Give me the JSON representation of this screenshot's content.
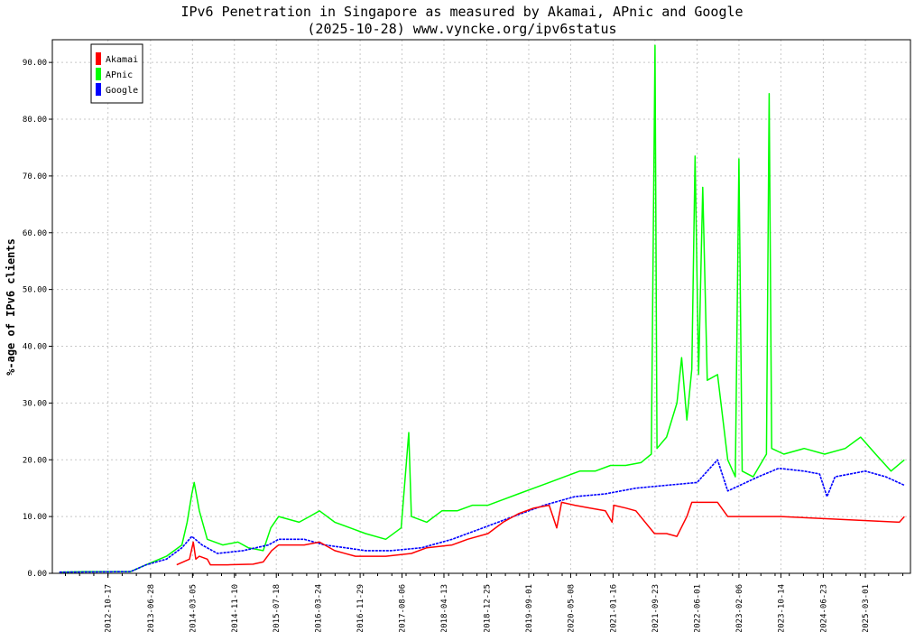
{
  "chart_data": {
    "type": "line",
    "title": "IPv6 Penetration in Singapore as measured by Akamai, APnic and Google",
    "subtitle": "(2025-10-28) www.vyncke.org/ipv6status",
    "ylabel": "%-age of IPv6 clients",
    "xlabel": "",
    "ylim": [
      0,
      94
    ],
    "xlim": [
      "2011-11-20",
      "2025-11-25"
    ],
    "grid": true,
    "legend_position": "top-left",
    "y_ticks": [
      "0.00",
      "10.00",
      "20.00",
      "30.00",
      "40.00",
      "50.00",
      "60.00",
      "70.00",
      "80.00",
      "90.00"
    ],
    "x_ticks": [
      "2012-10-17",
      "2013-06-28",
      "2014-03-05",
      "2014-11-10",
      "2015-07-18",
      "2016-03-24",
      "2016-11-29",
      "2017-08-06",
      "2018-04-13",
      "2018-12-25",
      "2019-09-01",
      "2020-05-08",
      "2021-01-16",
      "2021-09-23",
      "2022-06-01",
      "2023-02-06",
      "2023-10-14",
      "2024-06-23",
      "2025-03-01"
    ],
    "series": [
      {
        "name": "Akamai",
        "color": "#ff0000",
        "points": [
          [
            "2013-12-01",
            1.5
          ],
          [
            "2014-02-15",
            2.5
          ],
          [
            "2014-03-10",
            5.5
          ],
          [
            "2014-03-25",
            2.5
          ],
          [
            "2014-04-15",
            3.0
          ],
          [
            "2014-06-01",
            2.5
          ],
          [
            "2014-06-20",
            1.5
          ],
          [
            "2014-10-01",
            1.5
          ],
          [
            "2015-03-01",
            1.6
          ],
          [
            "2015-05-01",
            2.0
          ],
          [
            "2015-06-20",
            4.0
          ],
          [
            "2015-08-01",
            5.0
          ],
          [
            "2016-01-01",
            5.0
          ],
          [
            "2016-04-01",
            5.5
          ],
          [
            "2016-07-01",
            4.0
          ],
          [
            "2016-11-01",
            3.0
          ],
          [
            "2017-05-01",
            3.0
          ],
          [
            "2017-10-01",
            3.5
          ],
          [
            "2018-01-01",
            4.5
          ],
          [
            "2018-06-01",
            5.0
          ],
          [
            "2018-09-01",
            6.0
          ],
          [
            "2019-01-01",
            7.0
          ],
          [
            "2019-04-01",
            9.0
          ],
          [
            "2019-07-01",
            10.5
          ],
          [
            "2019-10-01",
            11.5
          ],
          [
            "2020-01-01",
            12.0
          ],
          [
            "2020-02-15",
            8.0
          ],
          [
            "2020-03-15",
            12.5
          ],
          [
            "2020-06-01",
            12.0
          ],
          [
            "2020-09-01",
            11.5
          ],
          [
            "2020-12-01",
            11.0
          ],
          [
            "2021-01-10",
            9.0
          ],
          [
            "2021-01-20",
            12.0
          ],
          [
            "2021-04-01",
            11.5
          ],
          [
            "2021-06-01",
            11.0
          ],
          [
            "2021-09-20",
            7.0
          ],
          [
            "2021-12-01",
            7.0
          ],
          [
            "2022-02-01",
            6.5
          ],
          [
            "2022-04-01",
            10.0
          ],
          [
            "2022-05-01",
            12.5
          ],
          [
            "2022-08-01",
            12.5
          ],
          [
            "2022-10-01",
            12.5
          ],
          [
            "2022-12-01",
            10.0
          ],
          [
            "2023-03-01",
            10.0
          ],
          [
            "2023-08-01",
            10.0
          ],
          [
            "2023-10-14",
            10.0
          ],
          [
            "2025-09-20",
            9.0
          ],
          [
            "2025-10-20",
            10.0
          ]
        ]
      },
      {
        "name": "APnic",
        "color": "#00ff00",
        "points": [
          [
            "2012-01-01",
            0.2
          ],
          [
            "2012-06-01",
            0.3
          ],
          [
            "2013-03-01",
            0.3
          ],
          [
            "2013-06-01",
            1.5
          ],
          [
            "2013-10-01",
            3.0
          ],
          [
            "2014-01-01",
            5.0
          ],
          [
            "2014-02-01",
            9.0
          ],
          [
            "2014-03-01",
            14.0
          ],
          [
            "2014-03-15",
            16.0
          ],
          [
            "2014-04-15",
            11.0
          ],
          [
            "2014-06-01",
            6.0
          ],
          [
            "2014-09-01",
            5.0
          ],
          [
            "2014-12-01",
            5.5
          ],
          [
            "2015-02-01",
            4.5
          ],
          [
            "2015-05-01",
            4.0
          ],
          [
            "2015-06-15",
            8.0
          ],
          [
            "2015-08-01",
            10.0
          ],
          [
            "2015-12-01",
            9.0
          ],
          [
            "2016-02-01",
            10.0
          ],
          [
            "2016-04-01",
            11.0
          ],
          [
            "2016-07-01",
            9.0
          ],
          [
            "2016-10-01",
            8.0
          ],
          [
            "2017-01-01",
            7.0
          ],
          [
            "2017-05-01",
            6.0
          ],
          [
            "2017-08-01",
            8.0
          ],
          [
            "2017-09-15",
            24.8
          ],
          [
            "2017-10-01",
            10.0
          ],
          [
            "2018-01-01",
            9.0
          ],
          [
            "2018-04-01",
            11.0
          ],
          [
            "2018-07-01",
            11.0
          ],
          [
            "2018-10-01",
            12.0
          ],
          [
            "2019-01-01",
            12.0
          ],
          [
            "2019-04-01",
            13.0
          ],
          [
            "2019-07-01",
            14.0
          ],
          [
            "2019-10-01",
            15.0
          ],
          [
            "2020-01-01",
            16.0
          ],
          [
            "2020-04-01",
            17.0
          ],
          [
            "2020-07-01",
            18.0
          ],
          [
            "2020-10-01",
            18.0
          ],
          [
            "2021-01-01",
            19.0
          ],
          [
            "2021-04-01",
            19.0
          ],
          [
            "2021-07-01",
            19.5
          ],
          [
            "2021-09-01",
            21.0
          ],
          [
            "2021-09-23",
            93.0
          ],
          [
            "2021-10-05",
            22.0
          ],
          [
            "2021-12-01",
            24.0
          ],
          [
            "2022-02-01",
            30.0
          ],
          [
            "2022-03-01",
            38.0
          ],
          [
            "2022-04-01",
            27.0
          ],
          [
            "2022-05-01",
            36.0
          ],
          [
            "2022-05-20",
            73.5
          ],
          [
            "2022-06-10",
            35.0
          ],
          [
            "2022-07-05",
            68.0
          ],
          [
            "2022-08-01",
            34.0
          ],
          [
            "2022-10-01",
            35.0
          ],
          [
            "2022-12-01",
            20.0
          ],
          [
            "2023-01-15",
            17.0
          ],
          [
            "2023-02-06",
            73.0
          ],
          [
            "2023-02-25",
            18.0
          ],
          [
            "2023-05-01",
            17.0
          ],
          [
            "2023-07-20",
            21.0
          ],
          [
            "2023-08-05",
            84.5
          ],
          [
            "2023-08-20",
            22.0
          ],
          [
            "2023-11-01",
            21.0
          ],
          [
            "2024-03-01",
            22.0
          ],
          [
            "2024-07-01",
            21.0
          ],
          [
            "2024-11-01",
            22.0
          ],
          [
            "2025-02-01",
            24.0
          ],
          [
            "2025-05-01",
            21.0
          ],
          [
            "2025-08-01",
            18.0
          ],
          [
            "2025-10-20",
            20.0
          ]
        ]
      },
      {
        "name": "Google",
        "color": "#0000ff",
        "points": [
          [
            "2012-01-01",
            0.2
          ],
          [
            "2013-03-01",
            0.3
          ],
          [
            "2013-06-01",
            1.5
          ],
          [
            "2013-10-01",
            2.5
          ],
          [
            "2014-01-01",
            4.5
          ],
          [
            "2014-03-01",
            6.5
          ],
          [
            "2014-05-01",
            5.0
          ],
          [
            "2014-08-01",
            3.5
          ],
          [
            "2015-01-01",
            4.0
          ],
          [
            "2015-06-01",
            5.0
          ],
          [
            "2015-08-01",
            6.0
          ],
          [
            "2016-01-01",
            6.0
          ],
          [
            "2016-05-01",
            5.0
          ],
          [
            "2016-09-01",
            4.5
          ],
          [
            "2017-01-01",
            4.0
          ],
          [
            "2017-06-01",
            4.0
          ],
          [
            "2017-12-01",
            4.5
          ],
          [
            "2018-06-01",
            6.0
          ],
          [
            "2018-12-01",
            8.0
          ],
          [
            "2019-06-01",
            10.0
          ],
          [
            "2019-12-01",
            12.0
          ],
          [
            "2020-06-01",
            13.5
          ],
          [
            "2020-12-01",
            14.0
          ],
          [
            "2021-06-01",
            15.0
          ],
          [
            "2021-12-01",
            15.5
          ],
          [
            "2022-06-01",
            16.0
          ],
          [
            "2022-10-01",
            20.0
          ],
          [
            "2022-12-01",
            14.5
          ],
          [
            "2023-06-01",
            17.0
          ],
          [
            "2023-10-01",
            18.5
          ],
          [
            "2024-03-01",
            18.0
          ],
          [
            "2024-06-01",
            17.5
          ],
          [
            "2024-07-15",
            13.5
          ],
          [
            "2024-09-01",
            17.0
          ],
          [
            "2025-03-01",
            18.0
          ],
          [
            "2025-07-01",
            17.0
          ],
          [
            "2025-10-20",
            15.5
          ]
        ]
      }
    ]
  }
}
